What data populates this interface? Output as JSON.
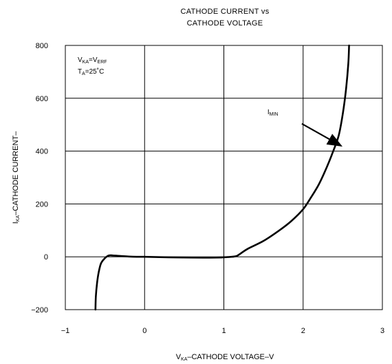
{
  "chart_data": {
    "type": "line",
    "title_line1": "CATHODE CURRENT vs",
    "title_line2": "CATHODE VOLTAGE",
    "xlabel": {
      "main": "V",
      "sub": "KA",
      "rest": "–CATHODE VOLTAGE–V"
    },
    "ylabel": {
      "main": "I",
      "sub": "KA",
      "rest": "–CATHODE CURRENT–"
    },
    "xlim": [
      -1,
      3
    ],
    "ylim": [
      -200,
      800
    ],
    "x_ticks": [
      "−1",
      "0",
      "1",
      "2",
      "3"
    ],
    "x_tick_values": [
      -1,
      0,
      1,
      2,
      3
    ],
    "y_ticks": [
      "800",
      "600",
      "400",
      "200",
      "0",
      "−200"
    ],
    "y_tick_values": [
      800,
      600,
      400,
      200,
      0,
      -200
    ],
    "grid": true,
    "conditions": [
      {
        "main": "V",
        "sub": "KA",
        "rest": "=V",
        "sub2": "ERF"
      },
      {
        "main": "T",
        "sub": "A",
        "rest": "=25˚C"
      }
    ],
    "annotation": {
      "main": "I",
      "sub": "MIN",
      "x": 1.55,
      "y": 540,
      "arrow_to": [
        2.48,
        420
      ]
    },
    "series": [
      {
        "x": [
          -0.62,
          -0.615,
          -0.6,
          -0.58,
          -0.55,
          -0.5,
          -0.45,
          -0.4,
          -0.3,
          -0.2,
          -0.1,
          0,
          0.3,
          0.6,
          0.9,
          1.05,
          1.15,
          1.2,
          1.3,
          1.5,
          1.7,
          1.85,
          2.0,
          2.1,
          2.2,
          2.3,
          2.38,
          2.45,
          2.5,
          2.54,
          2.57,
          2.58
        ],
        "y": [
          -200,
          -150,
          -100,
          -60,
          -25,
          -5,
          5,
          5,
          3,
          1,
          0,
          0,
          -2,
          -3,
          -3,
          -1,
          2,
          10,
          30,
          60,
          100,
          135,
          180,
          225,
          275,
          340,
          400,
          460,
          540,
          630,
          730,
          800
        ]
      }
    ]
  }
}
